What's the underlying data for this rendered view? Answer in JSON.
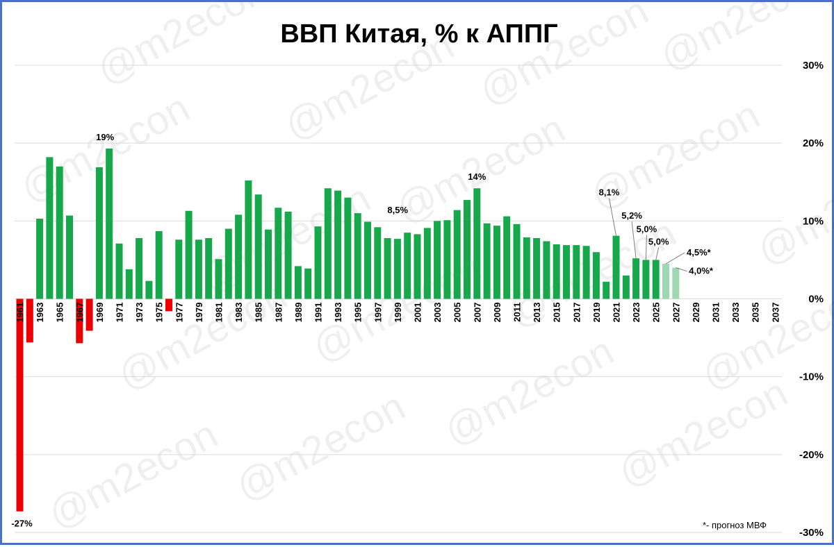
{
  "watermark": "@m2econ",
  "chart_data": {
    "type": "bar",
    "title": "ВВП Китая, % к АППГ",
    "footnote": "*- прогноз МВФ",
    "x": [
      1961,
      1962,
      1963,
      1964,
      1965,
      1966,
      1967,
      1968,
      1969,
      1970,
      1971,
      1972,
      1973,
      1974,
      1975,
      1976,
      1977,
      1978,
      1979,
      1980,
      1981,
      1982,
      1983,
      1984,
      1985,
      1986,
      1987,
      1988,
      1989,
      1990,
      1991,
      1992,
      1993,
      1994,
      1995,
      1996,
      1997,
      1998,
      1999,
      2000,
      2001,
      2002,
      2003,
      2004,
      2005,
      2006,
      2007,
      2008,
      2009,
      2010,
      2011,
      2012,
      2013,
      2014,
      2015,
      2016,
      2017,
      2018,
      2019,
      2020,
      2021,
      2022,
      2023,
      2024,
      2025,
      2026,
      2027
    ],
    "values": [
      -27.3,
      -5.6,
      10.3,
      18.2,
      17.0,
      10.7,
      -5.7,
      -4.1,
      16.9,
      19.3,
      7.1,
      3.8,
      7.8,
      2.3,
      8.7,
      -1.6,
      7.6,
      11.3,
      7.6,
      7.8,
      5.1,
      9.0,
      10.8,
      15.2,
      13.4,
      8.9,
      11.7,
      11.2,
      4.2,
      3.9,
      9.3,
      14.2,
      13.9,
      13.0,
      11.0,
      9.9,
      9.2,
      7.8,
      7.7,
      8.5,
      8.3,
      9.1,
      10.0,
      10.1,
      11.4,
      12.7,
      14.2,
      9.7,
      9.4,
      10.6,
      9.6,
      7.9,
      7.8,
      7.4,
      7.0,
      6.9,
      6.9,
      6.8,
      6.0,
      2.2,
      8.1,
      3.0,
      5.2,
      5.0,
      5.0,
      4.5,
      4.0
    ],
    "forecast_from": 2026,
    "x_tick_labels": [
      "1961",
      "1963",
      "1965",
      "1967",
      "1969",
      "1971",
      "1973",
      "1975",
      "1977",
      "1979",
      "1981",
      "1983",
      "1985",
      "1987",
      "1989",
      "1991",
      "1993",
      "1995",
      "1997",
      "1999",
      "2001",
      "2003",
      "2005",
      "2007",
      "2009",
      "2011",
      "2013",
      "2015",
      "2017",
      "2019",
      "2021",
      "2023",
      "2025",
      "2027",
      "2029",
      "2031",
      "2033",
      "2035",
      "2037"
    ],
    "x_range": [
      1961,
      2037
    ],
    "y_tick_labels": [
      "30%",
      "20%",
      "10%",
      "0%",
      "-10%",
      "-20%",
      "-30%"
    ],
    "ylim": [
      -30,
      30
    ],
    "y_ticks": [
      30,
      20,
      10,
      0,
      -10,
      -20,
      -30
    ],
    "grid": true,
    "colors": {
      "positive": "#16a84a",
      "negative": "#ee0000",
      "forecast": "#9ed8b0",
      "grid": "#d9d9d9",
      "leader": "#808080"
    },
    "annotations": [
      {
        "year": 1961,
        "text": "-27%"
      },
      {
        "year": 1970,
        "text": "19%"
      },
      {
        "year": 2000,
        "text": "8,5%"
      },
      {
        "year": 2007,
        "text": "14%"
      },
      {
        "year": 2021,
        "text": "8,1%"
      },
      {
        "year": 2023,
        "text": "5,2%"
      },
      {
        "year": 2024,
        "text": "5,0%"
      },
      {
        "year": 2025,
        "text": "5,0%"
      },
      {
        "year": 2026,
        "text": "4,5%*"
      },
      {
        "year": 2027,
        "text": "4,0%*"
      }
    ]
  }
}
